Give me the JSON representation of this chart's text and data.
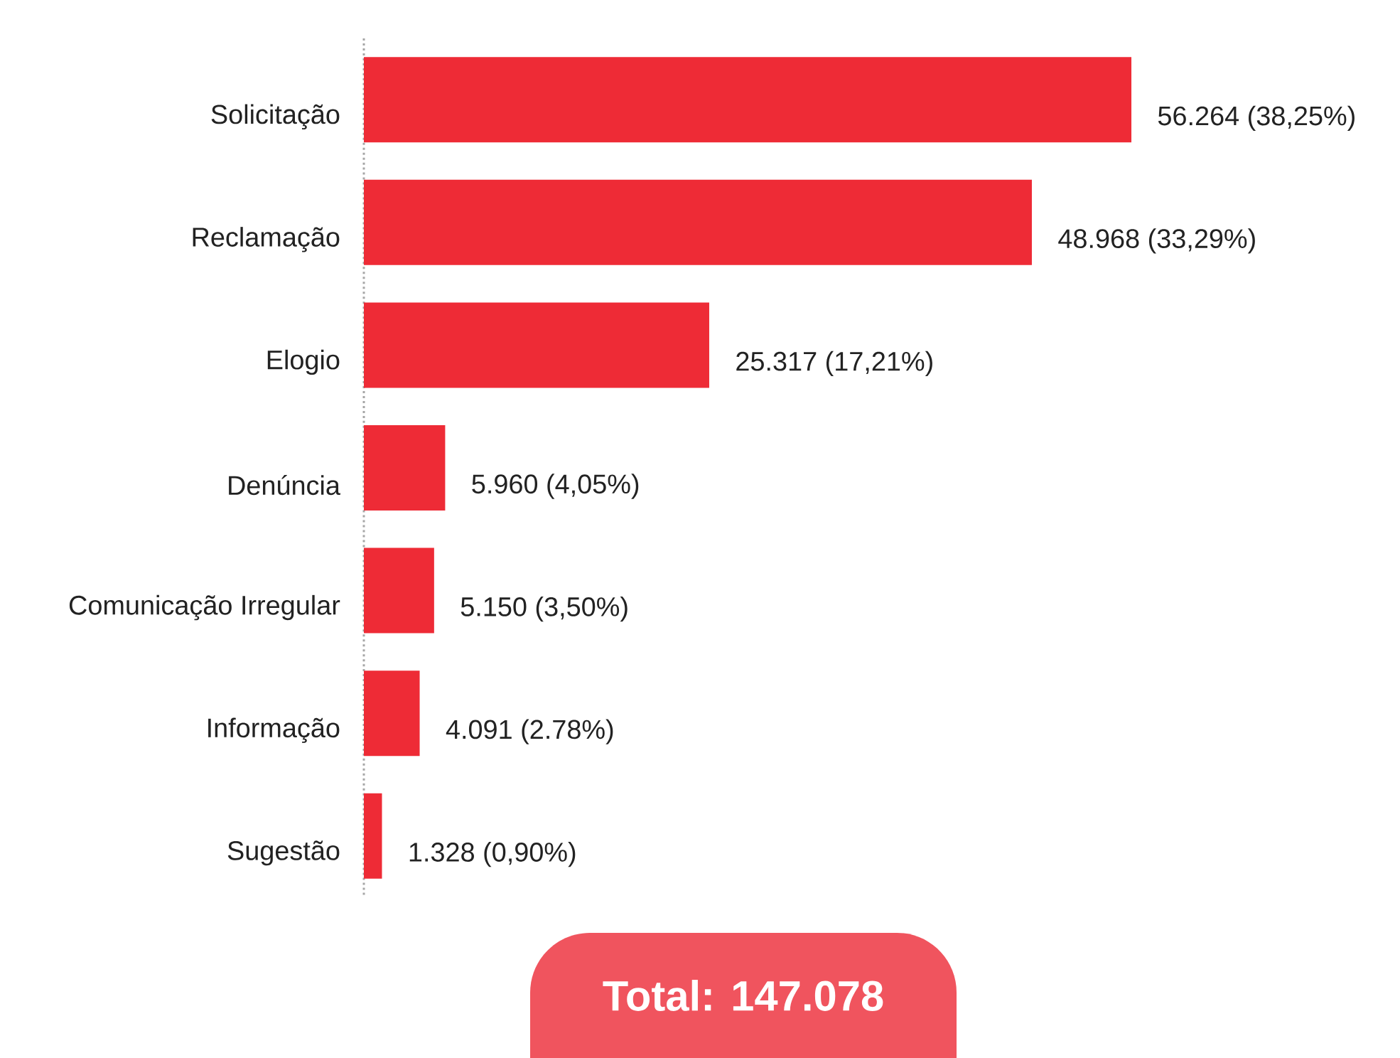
{
  "chart_data": {
    "type": "bar",
    "orientation": "horizontal",
    "categories": [
      "Solicitação",
      "Reclamação",
      "Elogio",
      "Denúncia",
      "Comunicação Irregular",
      "Informação",
      "Sugestão"
    ],
    "values": [
      56264,
      48968,
      25317,
      5960,
      5150,
      4091,
      1328
    ],
    "value_labels": [
      "56.264 (38,25%)",
      "48.968 (33,29%)",
      "25.317 (17,21%)",
      "5.960 (4,05%)",
      "5.150 (3,50%)",
      "4.091 (2.78%)",
      "1.328 (0,90%)"
    ],
    "color": "#ee2b36",
    "annotations": [
      "Total: 147.078"
    ]
  }
}
